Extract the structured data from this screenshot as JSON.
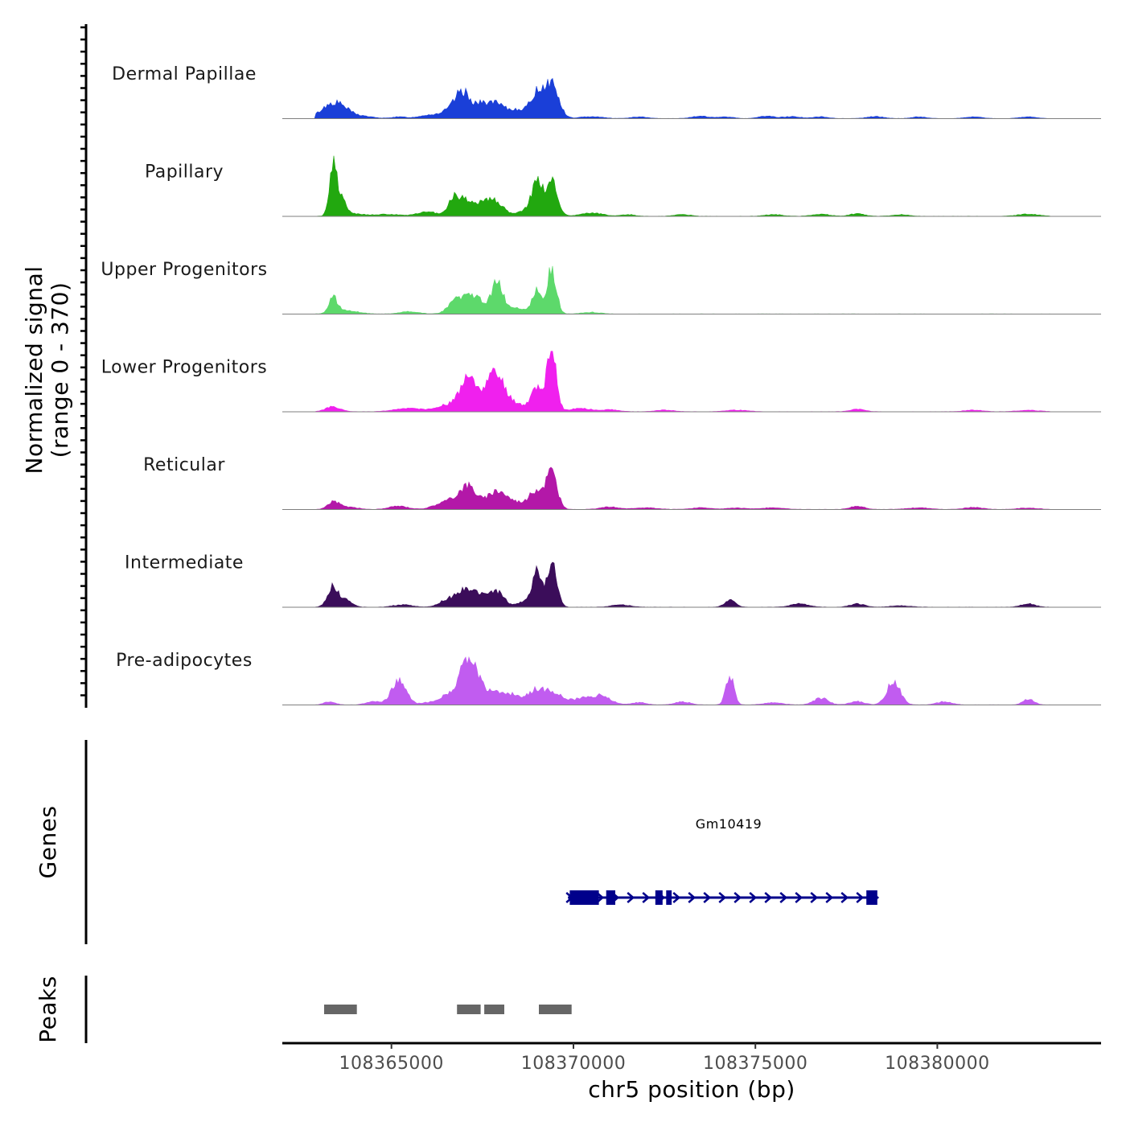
{
  "chart_data": {
    "type": "area",
    "chromosome": "chr5",
    "xlabel": "chr5 position (bp)",
    "xlim": [
      108362000,
      108384500
    ],
    "x_ticks": [
      108365000,
      108370000,
      108375000,
      108380000
    ],
    "x_tick_labels": [
      "108365000",
      "108370000",
      "108375000",
      "108380000"
    ],
    "signal_axis_title": "Normalized signal",
    "signal_axis_subtitle": "(range 0 - 370)",
    "ylim": [
      0,
      370
    ],
    "series": [
      {
        "name": "Dermal Papillae",
        "color": "#1a3fd8",
        "peaks": [
          [
            108363400,
            85,
            320
          ],
          [
            108363700,
            20,
            300
          ],
          [
            108364300,
            10,
            250
          ],
          [
            108365200,
            10,
            200
          ],
          [
            108366000,
            20,
            260
          ],
          [
            108366700,
            60,
            280
          ],
          [
            108366950,
            110,
            180
          ],
          [
            108367400,
            75,
            260
          ],
          [
            108367900,
            80,
            260
          ],
          [
            108368500,
            50,
            200
          ],
          [
            108369000,
            150,
            180
          ],
          [
            108369400,
            210,
            190
          ],
          [
            108370500,
            12,
            300
          ],
          [
            108371800,
            10,
            220
          ],
          [
            108373500,
            15,
            220
          ],
          [
            108374200,
            10,
            200
          ],
          [
            108375300,
            15,
            200
          ],
          [
            108376000,
            12,
            250
          ],
          [
            108376800,
            10,
            200
          ],
          [
            108378300,
            12,
            220
          ],
          [
            108379500,
            10,
            200
          ],
          [
            108381000,
            10,
            220
          ],
          [
            108382500,
            10,
            220
          ]
        ]
      },
      {
        "name": "Papillary",
        "color": "#22a80f",
        "peaks": [
          [
            108363400,
            310,
            100
          ],
          [
            108363650,
            90,
            110
          ],
          [
            108363900,
            15,
            350
          ],
          [
            108364900,
            12,
            300
          ],
          [
            108366000,
            25,
            300
          ],
          [
            108366700,
            95,
            150
          ],
          [
            108367000,
            90,
            180
          ],
          [
            108367500,
            95,
            200
          ],
          [
            108367900,
            80,
            200
          ],
          [
            108368800,
            50,
            250
          ],
          [
            108369000,
            185,
            130
          ],
          [
            108369400,
            215,
            160
          ],
          [
            108370500,
            20,
            300
          ],
          [
            108371500,
            10,
            200
          ],
          [
            108373000,
            10,
            220
          ],
          [
            108375500,
            10,
            250
          ],
          [
            108376800,
            12,
            250
          ],
          [
            108377800,
            15,
            200
          ],
          [
            108379000,
            10,
            220
          ],
          [
            108382500,
            12,
            300
          ]
        ]
      },
      {
        "name": "Upper Progenitors",
        "color": "#5dd96b",
        "peaks": [
          [
            108363400,
            95,
            120
          ],
          [
            108363800,
            20,
            300
          ],
          [
            108365500,
            15,
            250
          ],
          [
            108366800,
            85,
            220
          ],
          [
            108367300,
            100,
            250
          ],
          [
            108367900,
            185,
            150
          ],
          [
            108368400,
            40,
            300
          ],
          [
            108369000,
            150,
            120
          ],
          [
            108369400,
            270,
            130
          ],
          [
            108370500,
            10,
            250
          ]
        ]
      },
      {
        "name": "Lower Progenitors",
        "color": "#f020ee",
        "peaks": [
          [
            108363400,
            30,
            200
          ],
          [
            108365500,
            20,
            400
          ],
          [
            108366600,
            45,
            300
          ],
          [
            108367100,
            190,
            200
          ],
          [
            108367600,
            80,
            250
          ],
          [
            108367900,
            190,
            250
          ],
          [
            108368500,
            40,
            250
          ],
          [
            108369000,
            150,
            150
          ],
          [
            108369400,
            370,
            130
          ],
          [
            108370200,
            20,
            300
          ],
          [
            108371000,
            12,
            250
          ],
          [
            108372500,
            10,
            250
          ],
          [
            108374500,
            10,
            300
          ],
          [
            108377800,
            15,
            200
          ],
          [
            108381000,
            10,
            250
          ],
          [
            108382500,
            8,
            300
          ]
        ]
      },
      {
        "name": "Reticular",
        "color": "#b318a8",
        "peaks": [
          [
            108363400,
            45,
            150
          ],
          [
            108363800,
            15,
            250
          ],
          [
            108365200,
            20,
            250
          ],
          [
            108366500,
            45,
            300
          ],
          [
            108367100,
            140,
            250
          ],
          [
            108367900,
            110,
            250
          ],
          [
            108368500,
            40,
            300
          ],
          [
            108369000,
            110,
            180
          ],
          [
            108369400,
            225,
            150
          ],
          [
            108371000,
            15,
            250
          ],
          [
            108372000,
            10,
            300
          ],
          [
            108373500,
            10,
            250
          ],
          [
            108374500,
            8,
            300
          ],
          [
            108375500,
            10,
            300
          ],
          [
            108377800,
            20,
            200
          ],
          [
            108379500,
            10,
            300
          ],
          [
            108381000,
            12,
            250
          ],
          [
            108382500,
            8,
            300
          ]
        ]
      },
      {
        "name": "Intermediate",
        "color": "#3b0d5a",
        "peaks": [
          [
            108363400,
            125,
            150
          ],
          [
            108363800,
            40,
            150
          ],
          [
            108365300,
            15,
            250
          ],
          [
            108366600,
            50,
            250
          ],
          [
            108367000,
            90,
            180
          ],
          [
            108367400,
            75,
            200
          ],
          [
            108367900,
            95,
            200
          ],
          [
            108368700,
            40,
            200
          ],
          [
            108369000,
            205,
            120
          ],
          [
            108369400,
            260,
            140
          ],
          [
            108371300,
            15,
            250
          ],
          [
            108374300,
            40,
            150
          ],
          [
            108376200,
            20,
            250
          ],
          [
            108377800,
            20,
            200
          ],
          [
            108379000,
            8,
            300
          ],
          [
            108382500,
            20,
            200
          ]
        ]
      },
      {
        "name": "Pre-adipocytes",
        "color": "#c15cf0",
        "peaks": [
          [
            108363300,
            20,
            150
          ],
          [
            108364500,
            20,
            200
          ],
          [
            108365200,
            145,
            200
          ],
          [
            108366200,
            20,
            300
          ],
          [
            108366600,
            55,
            200
          ],
          [
            108367000,
            235,
            150
          ],
          [
            108367300,
            180,
            150
          ],
          [
            108367700,
            80,
            250
          ],
          [
            108368300,
            60,
            250
          ],
          [
            108369000,
            90,
            250
          ],
          [
            108369500,
            60,
            250
          ],
          [
            108370300,
            40,
            300
          ],
          [
            108370800,
            45,
            250
          ],
          [
            108371800,
            15,
            200
          ],
          [
            108373000,
            20,
            200
          ],
          [
            108374300,
            180,
            110
          ],
          [
            108375500,
            15,
            250
          ],
          [
            108376800,
            40,
            200
          ],
          [
            108377800,
            20,
            200
          ],
          [
            108378800,
            150,
            180
          ],
          [
            108380200,
            20,
            200
          ],
          [
            108382500,
            35,
            150
          ]
        ]
      }
    ],
    "genes_track_label": "Genes",
    "gene": {
      "name": "Gm10419",
      "start": 108369850,
      "end": 108378300,
      "strand": "+",
      "color": "#00008b",
      "exons": [
        [
          108369900,
          108370700
        ],
        [
          108370900,
          108371150
        ],
        [
          108372250,
          108372450
        ],
        [
          108372550,
          108372700
        ],
        [
          108378050,
          108378350
        ]
      ]
    },
    "peaks_track_label": "Peaks",
    "peaks": [
      [
        108363150,
        108364050
      ],
      [
        108366800,
        108367450
      ],
      [
        108367550,
        108368100
      ],
      [
        108369050,
        108369950
      ]
    ],
    "peaks_color": "#666666"
  }
}
